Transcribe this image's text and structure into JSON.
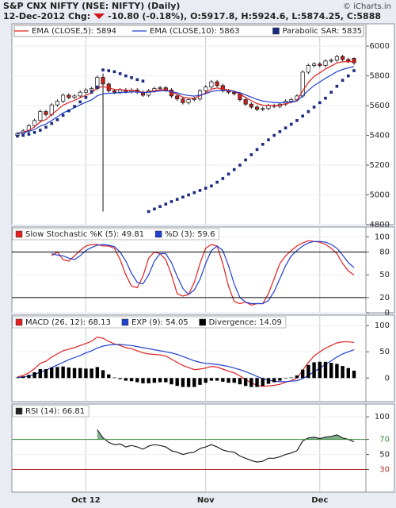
{
  "header": {
    "title": "S&P CNX NIFTY (NSE: NIFTY) (Daily)",
    "date_change": "12-Dec-2012 Chg:",
    "quote": "-10.80 (-0.18%), O:5917.8, H:5924.6, L:5874.25, C:5888",
    "credit": "© iCharts.in"
  },
  "chart_data": [
    {
      "type": "candlestick",
      "categories": [
        null,
        null,
        null,
        null,
        null,
        null,
        null,
        null,
        null,
        null,
        null,
        null,
        "Oct 12",
        null,
        null,
        null,
        null,
        null,
        null,
        null,
        null,
        null,
        null,
        null,
        null,
        null,
        null,
        null,
        null,
        null,
        null,
        null,
        null,
        "Nov",
        null,
        null,
        null,
        null,
        null,
        null,
        null,
        null,
        null,
        null,
        null,
        null,
        null,
        null,
        null,
        null,
        null,
        null,
        null,
        "Dec",
        null,
        null,
        null,
        null,
        null,
        null
      ],
      "open": [
        5400,
        5410,
        5430,
        5465,
        5500,
        5560,
        5540,
        5605,
        5630,
        5670,
        5655,
        5665,
        5690,
        5705,
        5715,
        5790,
        5745,
        5700,
        5690,
        5705,
        5695,
        5705,
        5690,
        5670,
        5700,
        5715,
        5720,
        5705,
        5665,
        5645,
        5620,
        5640,
        5645,
        5700,
        5725,
        5760,
        5735,
        5700,
        5690,
        5680,
        5640,
        5610,
        5590,
        5575,
        5580,
        5600,
        5595,
        5610,
        5630,
        5640,
        5665,
        5825,
        5870,
        5880,
        5870,
        5900,
        5905,
        5930,
        5910,
        5917.8
      ],
      "high": [
        5422,
        5442,
        5477,
        5512,
        5572,
        5572,
        5617,
        5642,
        5682,
        5682,
        5677,
        5702,
        5717,
        5727,
        5802,
        5815,
        5757,
        5712,
        5717,
        5717,
        5717,
        5717,
        5702,
        5712,
        5727,
        5732,
        5732,
        5717,
        5677,
        5657,
        5652,
        5657,
        5712,
        5737,
        5772,
        5772,
        5747,
        5712,
        5702,
        5692,
        5652,
        5622,
        5602,
        5592,
        5612,
        5612,
        5622,
        5642,
        5652,
        5677,
        5837,
        5882,
        5892,
        5892,
        5912,
        5917,
        5942,
        5942,
        5922,
        5924.6
      ],
      "low": [
        5388,
        5398,
        5418,
        5453,
        5488,
        5528,
        5528,
        5593,
        5618,
        5643,
        5643,
        5653,
        5678,
        5693,
        5703,
        4888,
        5688,
        5678,
        5678,
        5683,
        5683,
        5678,
        5658,
        5658,
        5688,
        5703,
        5693,
        5653,
        5633,
        5608,
        5608,
        5628,
        5633,
        5688,
        5713,
        5723,
        5688,
        5678,
        5668,
        5628,
        5598,
        5578,
        5563,
        5563,
        5568,
        5583,
        5583,
        5598,
        5618,
        5628,
        5653,
        5813,
        5858,
        5858,
        5858,
        5888,
        5893,
        5898,
        5886,
        5874.25
      ],
      "close": [
        5410,
        5430,
        5465,
        5500,
        5560,
        5540,
        5605,
        5630,
        5670,
        5655,
        5665,
        5690,
        5705,
        5715,
        5790,
        5745,
        5700,
        5690,
        5705,
        5695,
        5705,
        5690,
        5670,
        5700,
        5715,
        5720,
        5705,
        5665,
        5645,
        5620,
        5640,
        5645,
        5700,
        5725,
        5760,
        5735,
        5700,
        5690,
        5680,
        5640,
        5610,
        5590,
        5575,
        5580,
        5600,
        5595,
        5610,
        5630,
        5640,
        5665,
        5825,
        5870,
        5880,
        5870,
        5900,
        5905,
        5930,
        5910,
        5898,
        5888
      ],
      "up_color": "#ffffff",
      "down_color": "#cc1f1f",
      "series": [
        {
          "name": "EMA (CLOSE,5): 5894",
          "kind": "line",
          "color": "#e02020",
          "values": [
            5415,
            5420,
            5435,
            5457,
            5491,
            5507,
            5540,
            5570,
            5603,
            5620,
            5635,
            5653,
            5670,
            5685,
            5720,
            5728,
            5719,
            5709,
            5708,
            5704,
            5704,
            5699,
            5689,
            5693,
            5700,
            5707,
            5706,
            5692,
            5676,
            5657,
            5651,
            5649,
            5666,
            5686,
            5711,
            5719,
            5713,
            5705,
            5697,
            5678,
            5655,
            5633,
            5614,
            5603,
            5602,
            5600,
            5603,
            5612,
            5621,
            5636,
            5699,
            5756,
            5797,
            5821,
            5847,
            5866,
            5887,
            5895,
            5896,
            5894
          ]
        },
        {
          "name": "EMA (CLOSE,10): 5863",
          "kind": "line",
          "color": "#2040d0",
          "values": [
            5415,
            5418,
            5427,
            5440,
            5462,
            5476,
            5500,
            5524,
            5551,
            5569,
            5586,
            5605,
            5623,
            5639,
            5666,
            5680,
            5683,
            5684,
            5688,
            5689,
            5692,
            5692,
            5688,
            5690,
            5694,
            5699,
            5700,
            5694,
            5686,
            5674,
            5668,
            5664,
            5670,
            5680,
            5695,
            5702,
            5702,
            5700,
            5696,
            5686,
            5672,
            5657,
            5642,
            5631,
            5626,
            5621,
            5619,
            5621,
            5624,
            5631,
            5666,
            5703,
            5735,
            5759,
            5784,
            5806,
            5828,
            5843,
            5854,
            5863
          ]
        },
        {
          "name": "Parabolic SAR: 5835",
          "kind": "dots",
          "color": "#1a2a80",
          "values": [
            5395,
            5400,
            5408,
            5420,
            5435,
            5455,
            5480,
            5505,
            5535,
            5565,
            5595,
            5625,
            5655,
            5690,
            5725,
            5840,
            5835,
            5828,
            5815,
            5800,
            5788,
            5775,
            5765,
            4888,
            4905,
            4922,
            4938,
            4955,
            4970,
            4985,
            5000,
            5015,
            5030,
            5045,
            5060,
            5085,
            5110,
            5140,
            5170,
            5200,
            5235,
            5270,
            5305,
            5340,
            5370,
            5400,
            5425,
            5450,
            5475,
            5500,
            5530,
            5560,
            5590,
            5620,
            5650,
            5690,
            5730,
            5770,
            5800,
            5835
          ]
        }
      ],
      "ylim": [
        4800,
        6150
      ],
      "yticks": [
        4800,
        5000,
        5200,
        5400,
        5600,
        5800,
        6000
      ],
      "grid": true
    },
    {
      "type": "line",
      "series": [
        {
          "name": "Slow Stochastic %K (5): 49.81",
          "kind": "line",
          "color": "#e02020",
          "values": [
            null,
            null,
            null,
            null,
            null,
            null,
            75,
            80,
            70,
            68,
            75,
            82,
            88,
            90,
            90,
            88,
            88,
            85,
            70,
            50,
            35,
            33,
            48,
            72,
            80,
            78,
            70,
            50,
            25,
            22,
            24,
            40,
            65,
            85,
            90,
            88,
            65,
            35,
            15,
            12,
            14,
            10,
            12,
            12,
            25,
            45,
            65,
            75,
            82,
            88,
            92,
            95,
            94,
            93,
            90,
            85,
            78,
            65,
            55,
            49.81
          ]
        },
        {
          "name": "%D (3): 59.6",
          "kind": "line",
          "color": "#2040d0",
          "values": [
            null,
            null,
            null,
            null,
            null,
            null,
            78,
            76,
            75,
            72,
            70,
            75,
            82,
            86,
            89,
            90,
            89,
            87,
            80,
            68,
            52,
            40,
            38,
            50,
            68,
            78,
            78,
            66,
            48,
            32,
            24,
            30,
            44,
            65,
            82,
            88,
            82,
            62,
            38,
            20,
            14,
            12,
            12,
            12,
            16,
            28,
            45,
            62,
            75,
            82,
            88,
            92,
            94,
            94,
            93,
            90,
            85,
            76,
            66,
            59.6
          ]
        }
      ],
      "reference_lines": [
        {
          "value": 80,
          "color": "#000000"
        },
        {
          "value": 20,
          "color": "#000000"
        }
      ],
      "ylim": [
        0,
        113
      ],
      "yticks": [
        0,
        20,
        50,
        80,
        100
      ],
      "grid": true
    },
    {
      "type": "line",
      "series": [
        {
          "name": "MACD (26, 12): 68.13",
          "kind": "line",
          "color": "#e02020",
          "values": [
            2,
            5,
            10,
            18,
            28,
            32,
            40,
            46,
            52,
            55,
            58,
            62,
            66,
            70,
            78,
            76,
            70,
            65,
            62,
            58,
            56,
            52,
            48,
            46,
            45,
            44,
            42,
            36,
            30,
            24,
            20,
            16,
            17,
            19,
            22,
            21,
            17,
            13,
            10,
            4,
            -3,
            -9,
            -14,
            -16,
            -15,
            -14,
            -12,
            -8,
            -5,
            0,
            15,
            30,
            42,
            50,
            57,
            62,
            67,
            69,
            69,
            68.13
          ]
        },
        {
          "name": "EXP (9): 54.05",
          "kind": "line",
          "color": "#2040d0",
          "values": [
            1,
            2,
            4,
            7,
            11,
            15,
            20,
            25,
            30,
            35,
            39,
            43,
            48,
            52,
            57,
            61,
            63,
            64,
            64,
            63,
            62,
            60,
            58,
            56,
            54,
            52,
            50,
            48,
            45,
            41,
            37,
            33,
            30,
            28,
            27,
            26,
            24,
            22,
            19,
            16,
            12,
            8,
            3,
            -1,
            -4,
            -6,
            -7,
            -7,
            -6,
            -5,
            -1,
            5,
            12,
            19,
            26,
            33,
            40,
            46,
            50,
            54.05
          ]
        },
        {
          "name": "Divergence: 14.09",
          "kind": "bar",
          "color": "#000000",
          "values": [
            1,
            3,
            6,
            11,
            17,
            17,
            20,
            21,
            22,
            20,
            19,
            19,
            18,
            18,
            21,
            15,
            7,
            1,
            -2,
            -5,
            -6,
            -8,
            -10,
            -10,
            -9,
            -8,
            -8,
            -12,
            -15,
            -17,
            -17,
            -17,
            -13,
            -9,
            -5,
            -5,
            -7,
            -9,
            -9,
            -12,
            -15,
            -17,
            -17,
            -15,
            -11,
            -8,
            -5,
            -1,
            1,
            5,
            16,
            25,
            30,
            31,
            31,
            29,
            27,
            23,
            19,
            14.09
          ]
        }
      ],
      "ylim": [
        -45,
        120
      ],
      "yticks": [
        0,
        50,
        100
      ],
      "grid": true
    },
    {
      "type": "line",
      "series": [
        {
          "name": "RSI (14): 66.81",
          "kind": "line",
          "color": "#222222",
          "values": [
            null,
            null,
            null,
            null,
            null,
            null,
            null,
            null,
            null,
            null,
            null,
            null,
            null,
            null,
            83,
            72,
            66,
            63,
            64,
            60,
            62,
            60,
            57,
            61,
            63,
            62,
            60,
            55,
            53,
            50,
            52,
            53,
            58,
            60,
            63,
            60,
            56,
            54,
            53,
            48,
            45,
            42,
            40,
            41,
            45,
            45,
            47,
            50,
            52,
            55,
            68,
            72,
            73,
            71,
            73,
            74,
            76,
            72,
            70,
            66.81
          ]
        }
      ],
      "reference_lines": [
        {
          "value": 70,
          "color": "#3a8a3a",
          "fill_above": "#5f9e6e"
        },
        {
          "value": 30,
          "color": "#b03030"
        }
      ],
      "ylim": [
        0,
        117
      ],
      "yticks": [
        30,
        50,
        70,
        100
      ],
      "grid": true
    }
  ]
}
